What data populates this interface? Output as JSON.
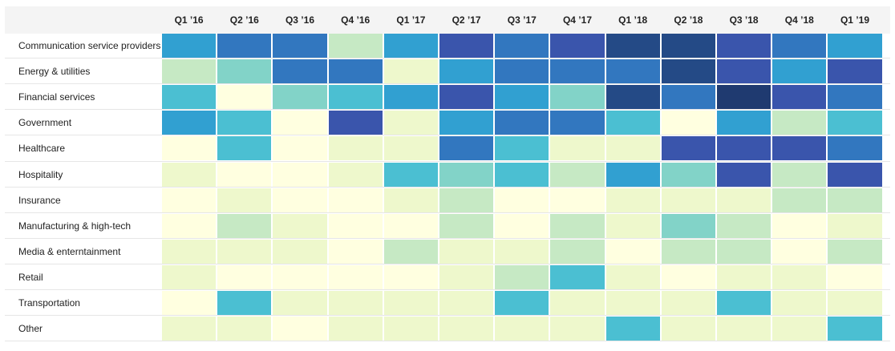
{
  "chart_data": {
    "type": "heatmap",
    "title": "",
    "columns": [
      "Q1 ’16",
      "Q2 ’16",
      "Q3 ’16",
      "Q4 ’16",
      "Q1 ’17",
      "Q2 ’17",
      "Q3 ’17",
      "Q4 ’17",
      "Q1 ’18",
      "Q2 ’18",
      "Q3 ’18",
      "Q4 ’18",
      "Q1 ’19"
    ],
    "rows": [
      "Communication service providers",
      "Energy & utilities",
      "Financial services",
      "Government",
      "Healthcare",
      "Hospitality",
      "Insurance",
      "Manufacturing & high-tech",
      "Media & enterntainment",
      "Retail",
      "Transportation",
      "Other"
    ],
    "color_scale": [
      "#ffffe0",
      "#eef8cc",
      "#c6e9c4",
      "#82d3c8",
      "#4bbfd2",
      "#31a0d1",
      "#3277bf",
      "#3a55ac",
      "#244a86",
      "#1f3a70"
    ],
    "values": [
      [
        5,
        6,
        6,
        2,
        5,
        7,
        6,
        7,
        8,
        8,
        7,
        6,
        5
      ],
      [
        2,
        3,
        6,
        6,
        1,
        5,
        6,
        6,
        6,
        8,
        7,
        5,
        7
      ],
      [
        4,
        0,
        3,
        4,
        5,
        7,
        5,
        3,
        8,
        6,
        9,
        7,
        6
      ],
      [
        5,
        4,
        0,
        7,
        1,
        5,
        6,
        6,
        4,
        0,
        5,
        2,
        4
      ],
      [
        0,
        4,
        0,
        1,
        1,
        6,
        4,
        1,
        1,
        7,
        7,
        7,
        6
      ],
      [
        1,
        0,
        0,
        1,
        4,
        3,
        4,
        2,
        5,
        3,
        7,
        2,
        7
      ],
      [
        0,
        1,
        0,
        0,
        1,
        2,
        0,
        0,
        1,
        1,
        1,
        2,
        2
      ],
      [
        0,
        2,
        1,
        0,
        0,
        2,
        0,
        2,
        1,
        3,
        2,
        0,
        1
      ],
      [
        1,
        1,
        1,
        0,
        2,
        1,
        1,
        2,
        0,
        2,
        2,
        0,
        2
      ],
      [
        1,
        0,
        0,
        0,
        0,
        1,
        2,
        4,
        1,
        0,
        1,
        1,
        0
      ],
      [
        0,
        4,
        1,
        1,
        1,
        1,
        4,
        1,
        1,
        1,
        4,
        1,
        1
      ],
      [
        1,
        1,
        0,
        1,
        1,
        1,
        1,
        1,
        4,
        1,
        1,
        1,
        4
      ]
    ]
  }
}
